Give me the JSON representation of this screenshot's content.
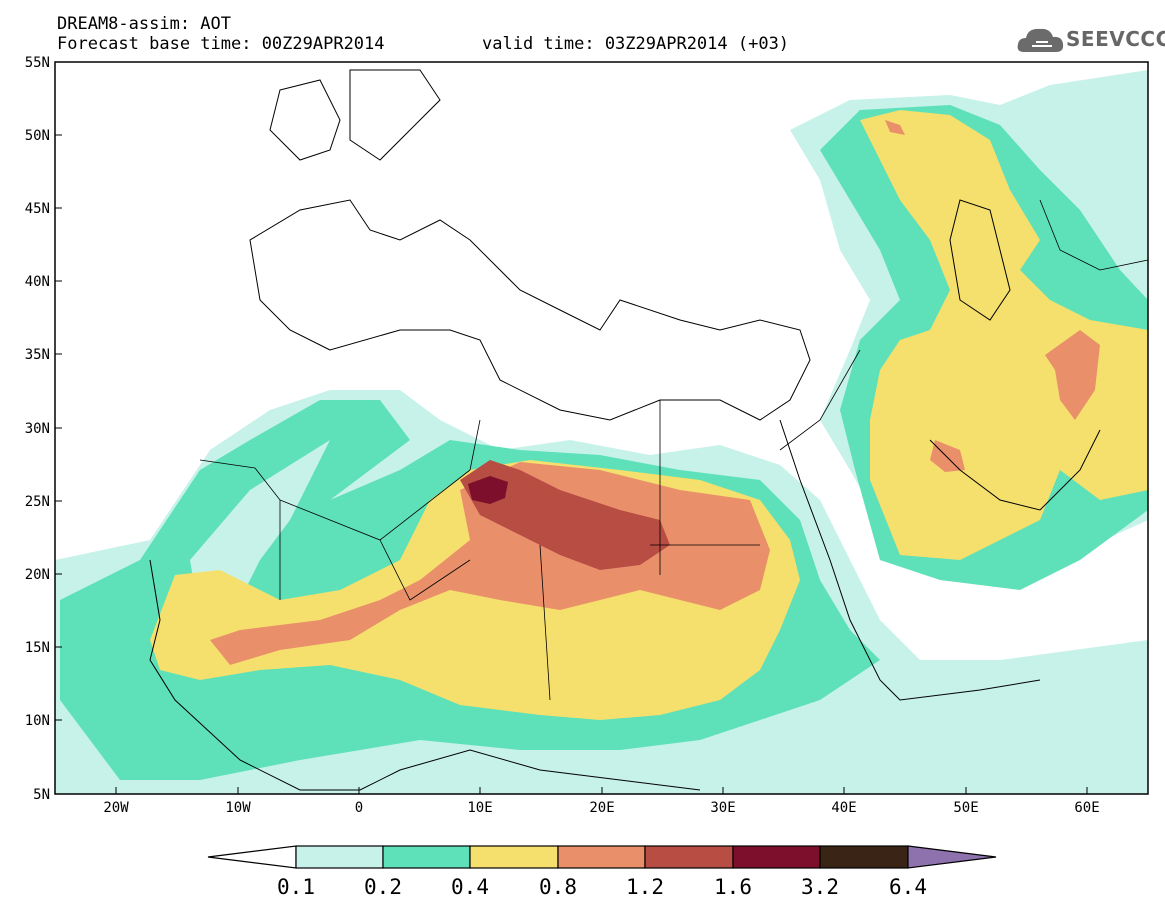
{
  "header": {
    "model_line": "DREAM8-assim: AOT",
    "base_time_line": "Forecast base time: 00Z29APR2014",
    "valid_time_line": "valid time: 03Z29APR2014 (+03)"
  },
  "logo": {
    "text": "SEEVCCC",
    "icon": "cloud-logo-icon",
    "color": "#6b6b6b"
  },
  "map": {
    "lat_labels": [
      "55N",
      "50N",
      "45N",
      "40N",
      "35N",
      "30N",
      "25N",
      "20N",
      "15N",
      "10N",
      "5N"
    ],
    "lon_labels": [
      "20W",
      "10W",
      "0",
      "10E",
      "20E",
      "30E",
      "40E",
      "50E",
      "60E"
    ]
  },
  "colorbar": {
    "levels": [
      "0.1",
      "0.2",
      "0.4",
      "0.8",
      "1.2",
      "1.6",
      "3.2",
      "6.4"
    ],
    "colors": [
      "#ffffff",
      "#c6f2ea",
      "#5ee0b8",
      "#f5e06e",
      "#e9906a",
      "#b84d44",
      "#7d0f2c",
      "#3a2416",
      "#8e72ad"
    ]
  }
}
